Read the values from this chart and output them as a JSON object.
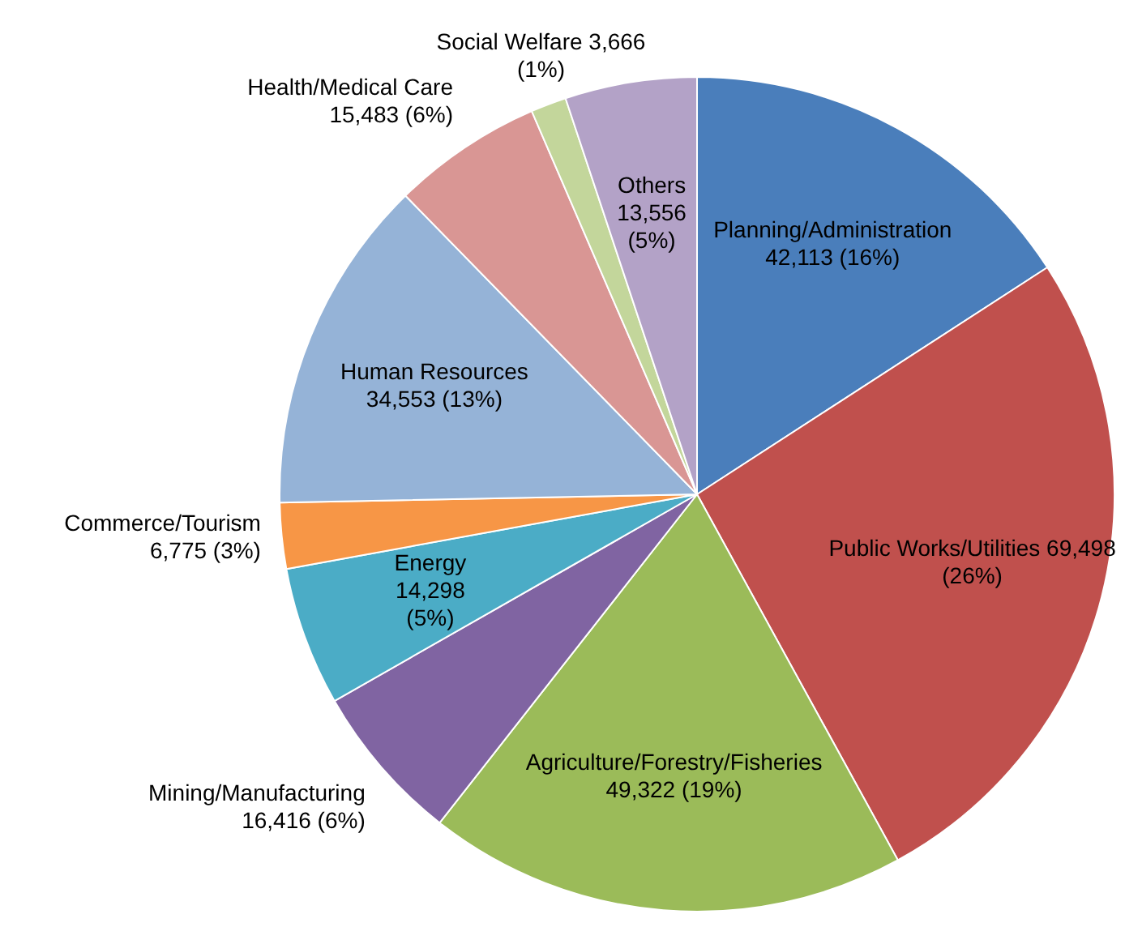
{
  "chart_data": {
    "type": "pie",
    "categories": [
      "Planning/Administration",
      "Public Works/Utilities",
      "Agriculture/Forestry/Fisheries",
      "Mining/Manufacturing",
      "Energy",
      "Commerce/Tourism",
      "Human Resources",
      "Health/Medical Care",
      "Social Welfare",
      "Others"
    ],
    "values": [
      42113,
      69498,
      49322,
      16416,
      14298,
      6775,
      34553,
      15483,
      3666,
      13556
    ],
    "colors": [
      "#4a7ebb",
      "#c0504d",
      "#9bbb59",
      "#8064a2",
      "#4bacc6",
      "#f79646",
      "#95b3d7",
      "#d99694",
      "#c3d69b",
      "#b3a2c7"
    ],
    "value_labels": [
      "42,113 (16%)",
      "69,498 (26%)",
      "49,322 (19%)",
      "16,416 (6%)",
      "14,298 (5%)",
      "6,775 (3%)",
      "34,553 (13%)",
      "15,483 (6%)",
      "3,666 (1%)",
      "13,556 (5%)"
    ],
    "legend": false
  }
}
